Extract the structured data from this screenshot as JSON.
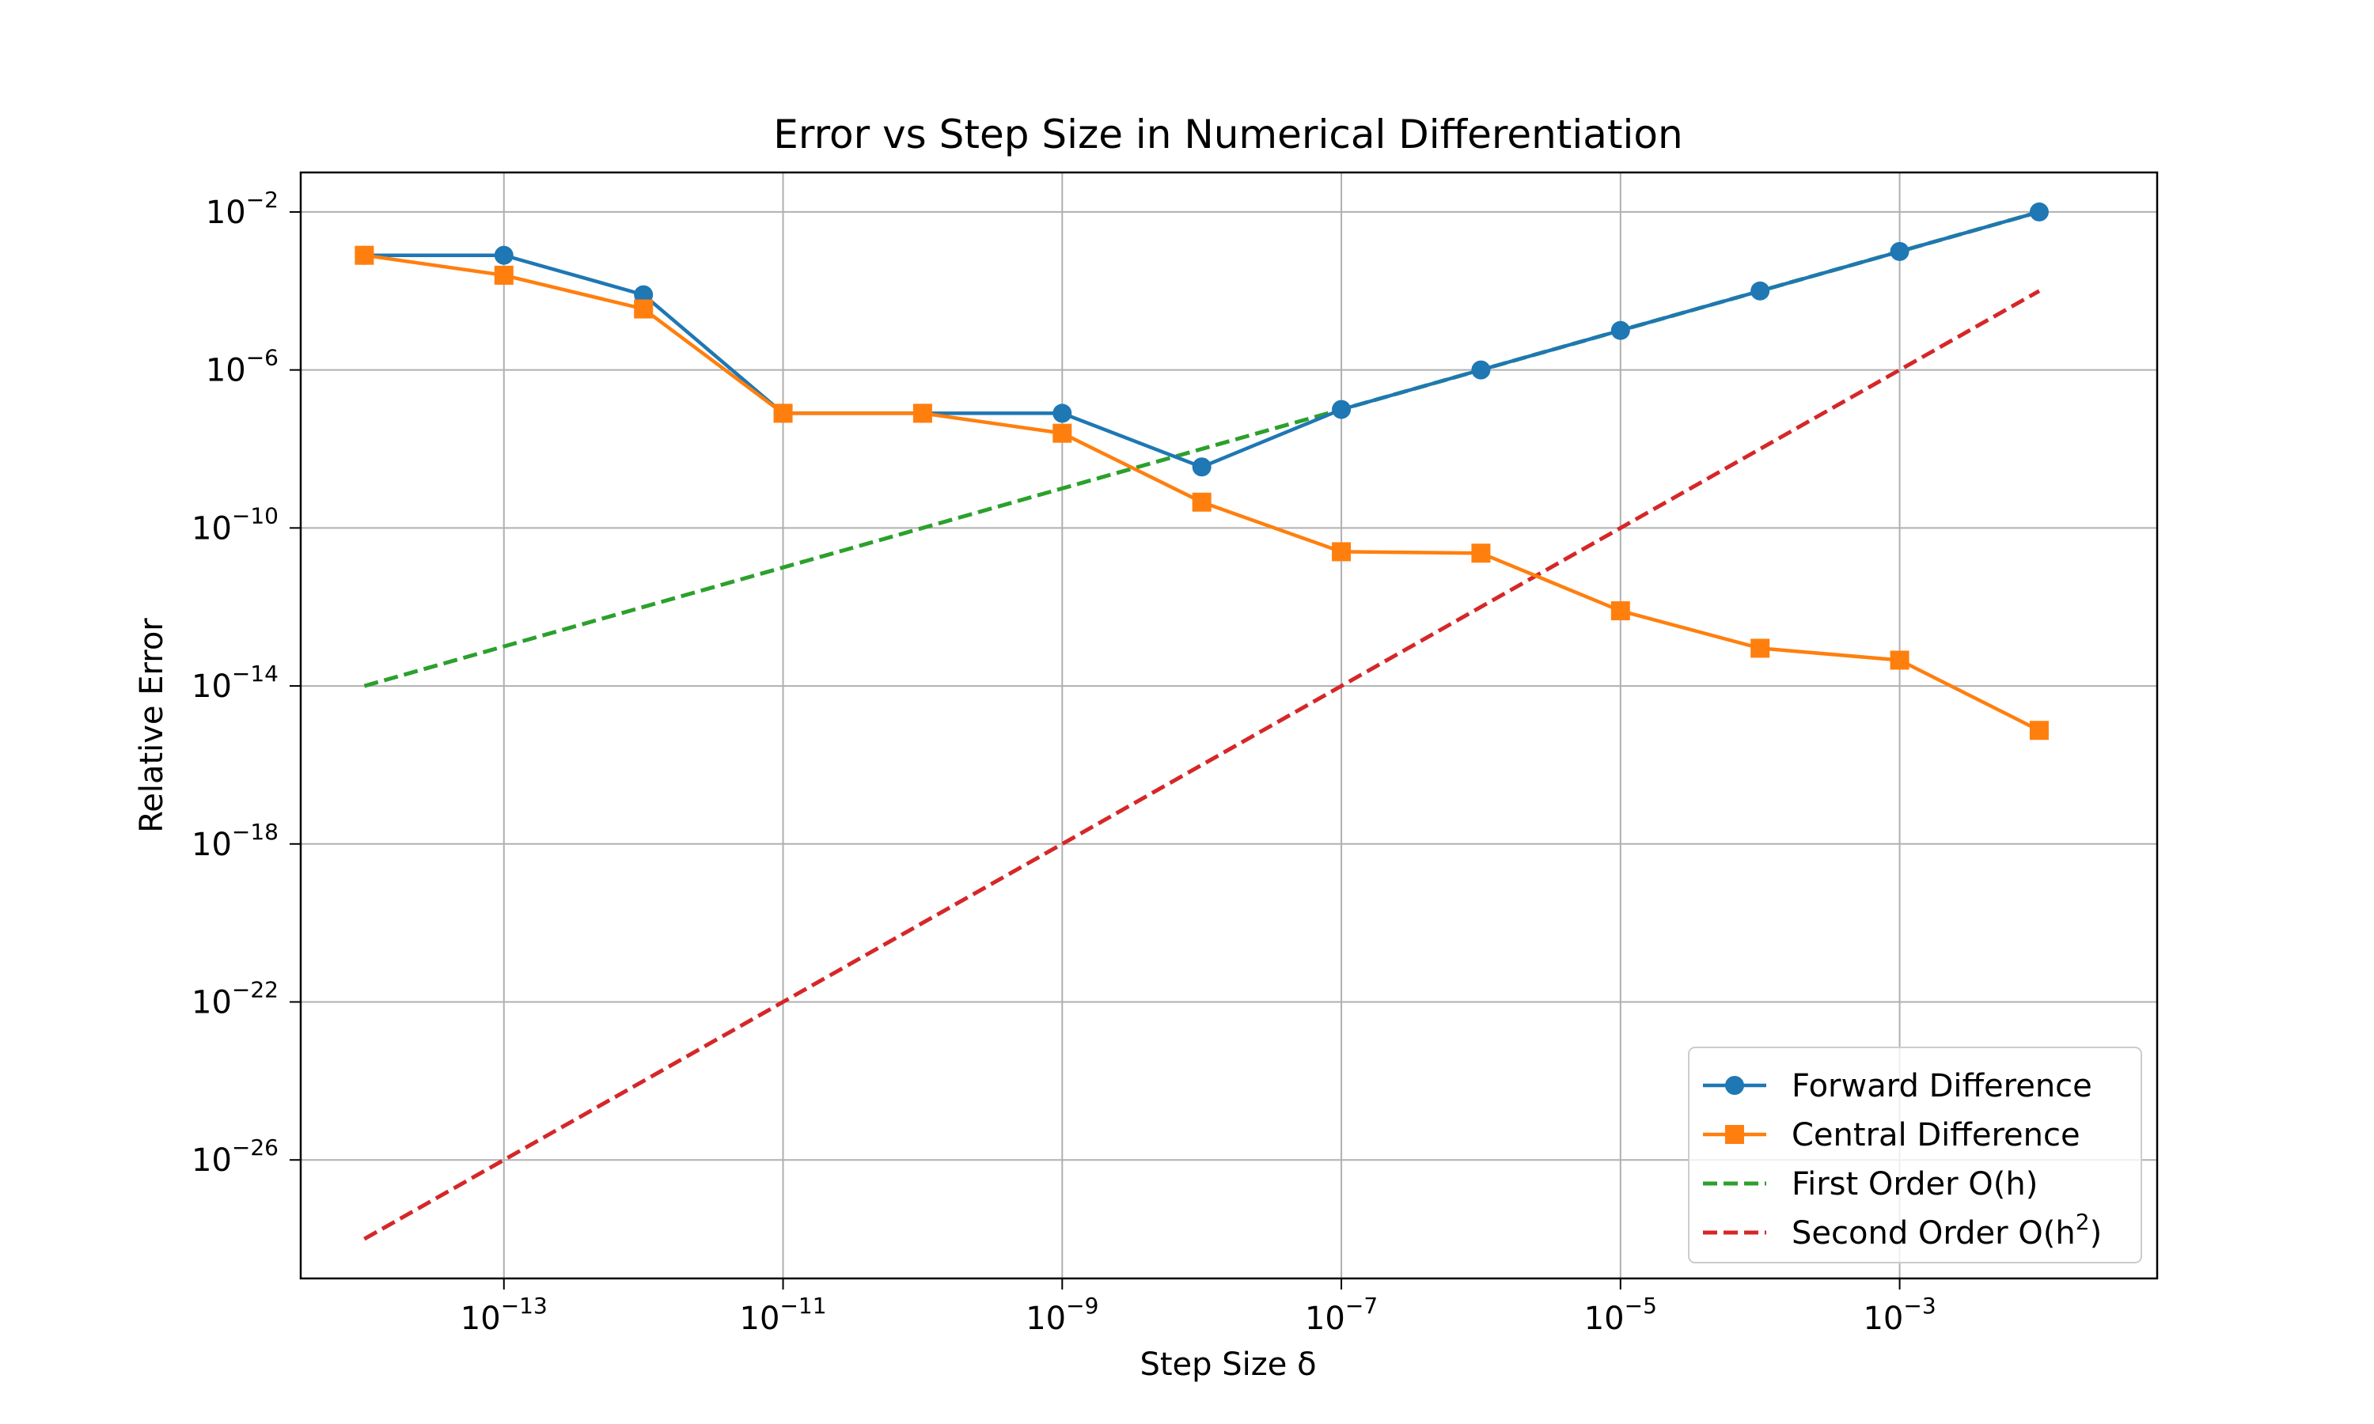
{
  "chart_data": {
    "type": "line",
    "title": "Error vs Step Size in Numerical Differentiation",
    "xlabel": "Step Size δ",
    "ylabel": "Relative Error",
    "x_scale": "log",
    "y_scale": "log",
    "xlim": [
      3.5e-15,
      0.07
    ],
    "ylim": [
      1e-29,
      0.1
    ],
    "grid": true,
    "legend_position": "lower-right",
    "x_ticks": [
      {
        "value": 1e-13,
        "base": "10",
        "exp": "−13"
      },
      {
        "value": 1e-11,
        "base": "10",
        "exp": "−11"
      },
      {
        "value": 1e-09,
        "base": "10",
        "exp": "−9"
      },
      {
        "value": 1e-07,
        "base": "10",
        "exp": "−7"
      },
      {
        "value": 1e-05,
        "base": "10",
        "exp": "−5"
      },
      {
        "value": 0.001,
        "base": "10",
        "exp": "−3"
      }
    ],
    "y_ticks": [
      {
        "value": 0.01,
        "base": "10",
        "exp": "−2"
      },
      {
        "value": 1e-06,
        "base": "10",
        "exp": "−6"
      },
      {
        "value": 1e-10,
        "base": "10",
        "exp": "−10"
      },
      {
        "value": 1e-14,
        "base": "10",
        "exp": "−14"
      },
      {
        "value": 1e-18,
        "base": "10",
        "exp": "−18"
      },
      {
        "value": 1e-22,
        "base": "10",
        "exp": "−22"
      },
      {
        "value": 1e-26,
        "base": "10",
        "exp": "−26"
      }
    ],
    "x": [
      1e-14,
      1e-13,
      1e-12,
      1e-11,
      1e-10,
      1e-09,
      1e-08,
      1e-07,
      1e-06,
      1e-05,
      0.0001,
      0.001,
      0.01
    ],
    "series": [
      {
        "name": "Forward Difference",
        "legend_label": "Forward Difference",
        "color": "#1f77b4",
        "marker": "circle",
        "dash": false,
        "values": [
          0.0008,
          0.0008,
          8e-05,
          8e-08,
          8e-08,
          8e-08,
          3.5e-09,
          1e-07,
          1e-06,
          1e-05,
          0.0001,
          0.001,
          0.01
        ]
      },
      {
        "name": "Central Difference",
        "legend_label": "Central Difference",
        "color": "#ff7f0e",
        "marker": "square",
        "dash": false,
        "values": [
          0.0008,
          0.00025,
          3.5e-05,
          8e-08,
          8e-08,
          2.5e-08,
          4.5e-10,
          2.5e-11,
          2.3e-11,
          8e-13,
          9e-14,
          4.5e-14,
          7.5e-16
        ]
      },
      {
        "name": "First Order O(h)",
        "legend_label": "First Order O(h)",
        "color": "#2ca02c",
        "marker": "none",
        "dash": true,
        "values": [
          1e-14,
          1e-13,
          1e-12,
          1e-11,
          1e-10,
          1e-09,
          1e-08,
          1e-07,
          1e-06,
          1e-05,
          0.0001,
          0.001,
          0.01
        ]
      },
      {
        "name": "Second Order O(h^2)",
        "legend_label": "Second Order O(h",
        "legend_sup": "2",
        "legend_suffix": ")",
        "color": "#d62728",
        "marker": "none",
        "dash": true,
        "values": [
          1e-28,
          1e-26,
          1e-24,
          1e-22,
          1e-20,
          1e-18,
          1e-16,
          1e-14,
          1e-12,
          1e-10,
          1e-08,
          1e-06,
          0.0001
        ]
      }
    ]
  }
}
